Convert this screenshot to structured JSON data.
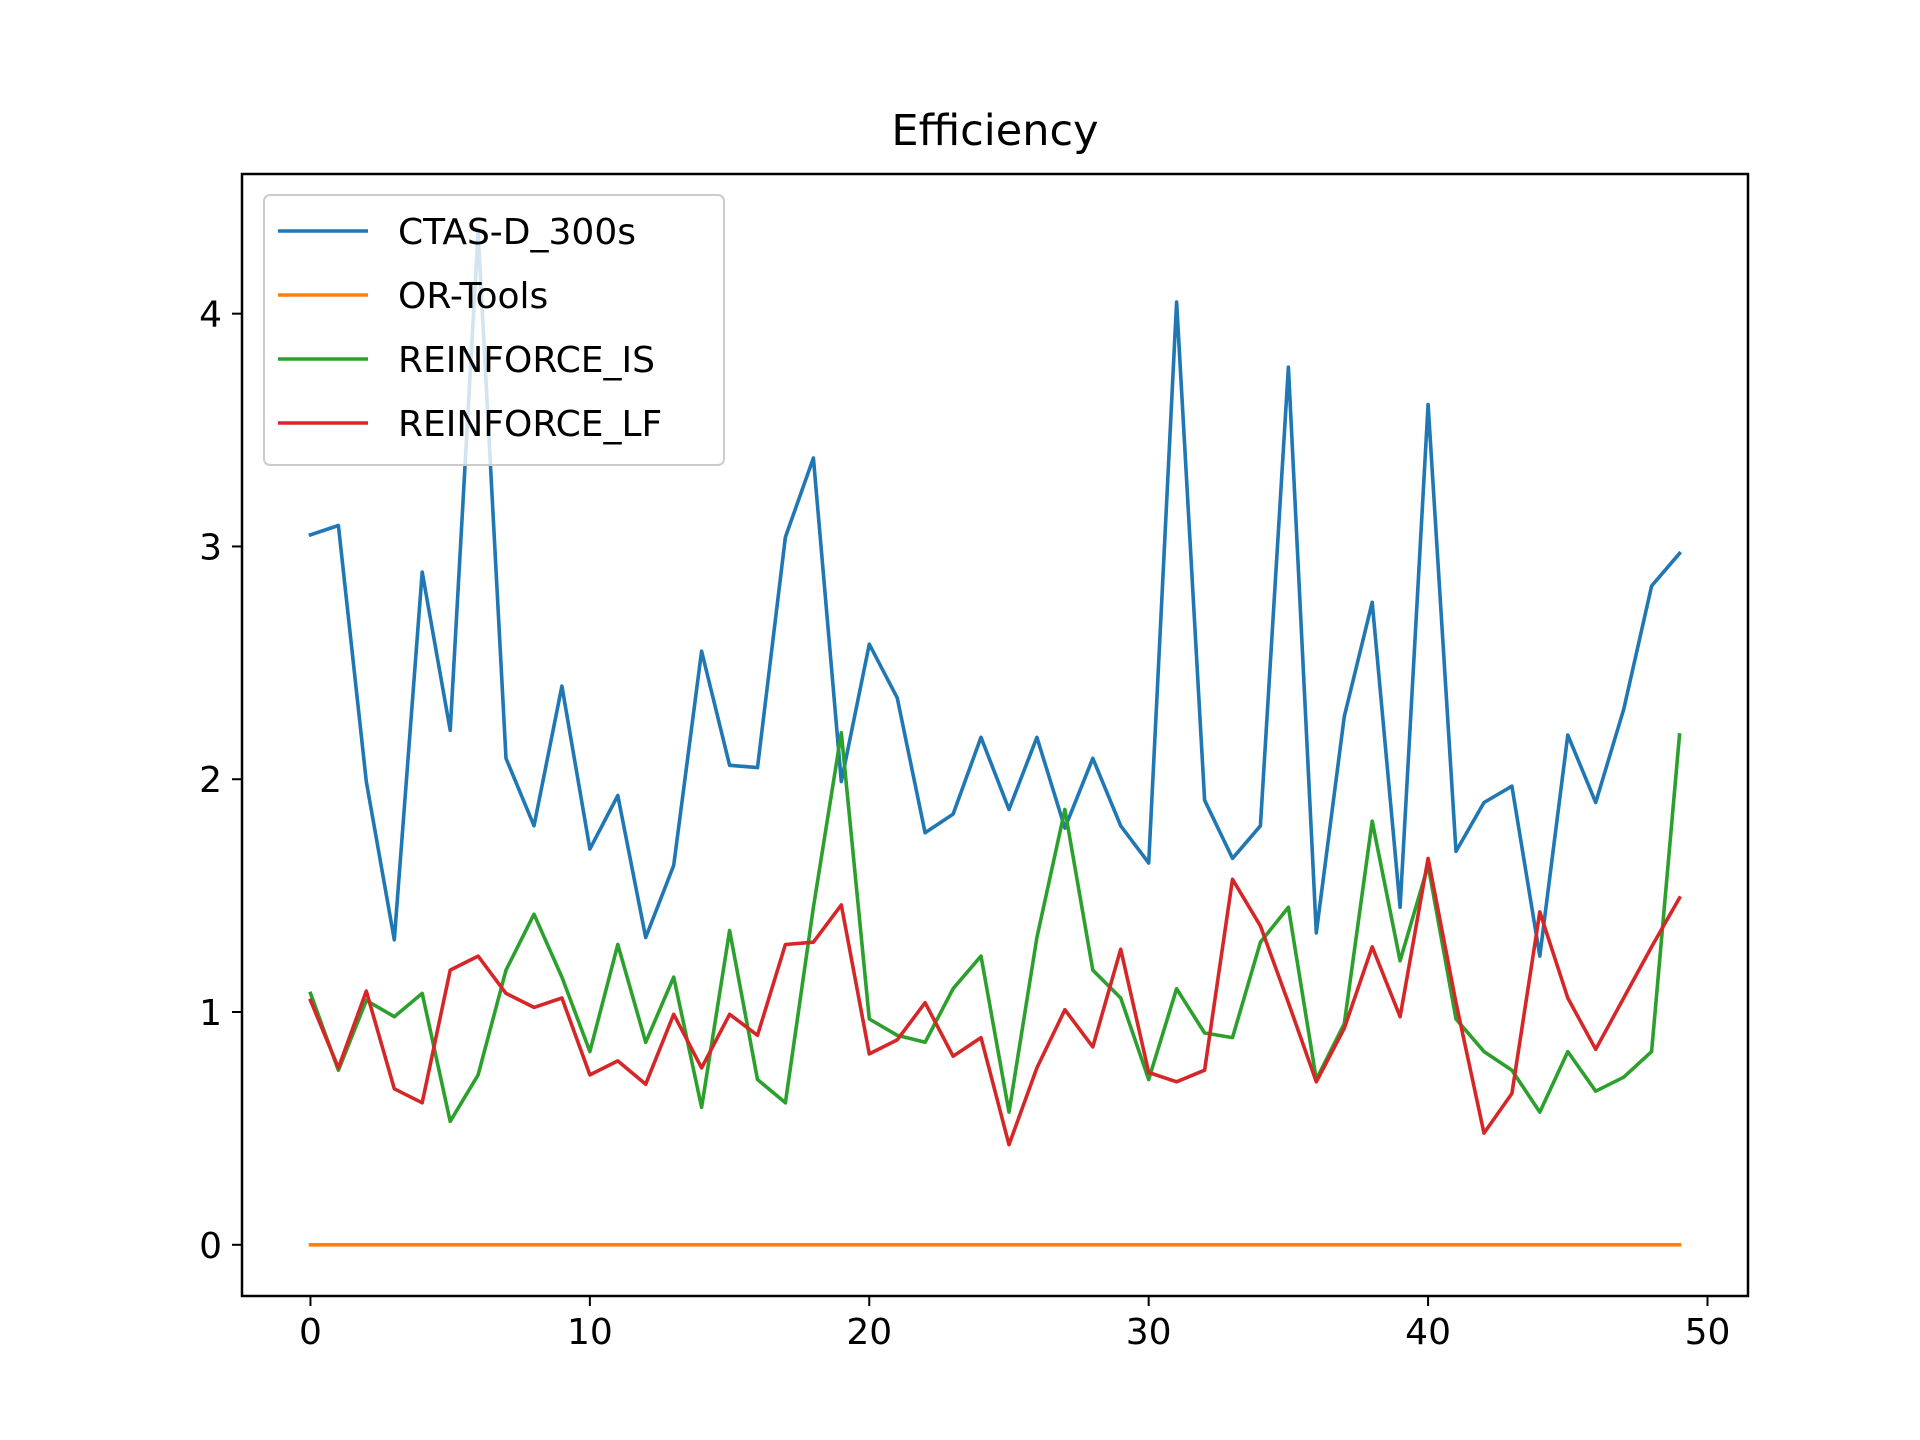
{
  "chart_data": {
    "type": "line",
    "title": "Efficiency",
    "xlabel": "",
    "ylabel": "",
    "xlim": [
      -2.45,
      51.45
    ],
    "ylim": [
      -0.22,
      4.6
    ],
    "xticks": [
      0,
      10,
      20,
      30,
      40,
      50
    ],
    "yticks": [
      0,
      1,
      2,
      3,
      4
    ],
    "grid": false,
    "legend_position": "upper-left",
    "x": [
      0,
      1,
      2,
      3,
      4,
      5,
      6,
      7,
      8,
      9,
      10,
      11,
      12,
      13,
      14,
      15,
      16,
      17,
      18,
      19,
      20,
      21,
      22,
      23,
      24,
      25,
      26,
      27,
      28,
      29,
      30,
      31,
      32,
      33,
      34,
      35,
      36,
      37,
      38,
      39,
      40,
      41,
      42,
      43,
      44,
      45,
      46,
      47,
      48,
      49
    ],
    "series": [
      {
        "name": "CTAS-D_300s",
        "color": "#1f77b4",
        "values": [
          3.05,
          3.09,
          1.99,
          1.31,
          2.89,
          2.21,
          4.35,
          2.09,
          1.8,
          2.4,
          1.7,
          1.93,
          1.32,
          1.63,
          2.55,
          2.06,
          2.05,
          3.04,
          3.38,
          1.99,
          2.58,
          2.35,
          1.77,
          1.85,
          2.18,
          1.87,
          2.18,
          1.79,
          2.09,
          1.8,
          1.64,
          4.05,
          1.91,
          1.66,
          1.8,
          3.77,
          1.34,
          2.27,
          2.76,
          1.45,
          3.61,
          1.69,
          1.9,
          1.97,
          1.24,
          2.19,
          1.9,
          2.3,
          2.83,
          2.97
        ]
      },
      {
        "name": "OR-Tools",
        "color": "#ff7f0e",
        "values": [
          0,
          0,
          0,
          0,
          0,
          0,
          0,
          0,
          0,
          0,
          0,
          0,
          0,
          0,
          0,
          0,
          0,
          0,
          0,
          0,
          0,
          0,
          0,
          0,
          0,
          0,
          0,
          0,
          0,
          0,
          0,
          0,
          0,
          0,
          0,
          0,
          0,
          0,
          0,
          0,
          0,
          0,
          0,
          0,
          0,
          0,
          0,
          0,
          0,
          0
        ]
      },
      {
        "name": "REINFORCE_IS",
        "color": "#2ca02c",
        "values": [
          1.08,
          0.75,
          1.05,
          0.98,
          1.08,
          0.53,
          0.73,
          1.18,
          1.42,
          1.15,
          0.83,
          1.29,
          0.87,
          1.15,
          0.59,
          1.35,
          0.71,
          0.61,
          1.45,
          2.2,
          0.97,
          0.9,
          0.87,
          1.1,
          1.24,
          0.57,
          1.32,
          1.87,
          1.18,
          1.06,
          0.71,
          1.1,
          0.91,
          0.89,
          1.3,
          1.45,
          0.71,
          0.95,
          1.82,
          1.22,
          1.63,
          0.97,
          0.83,
          0.75,
          0.57,
          0.83,
          0.66,
          0.72,
          0.83,
          2.19
        ]
      },
      {
        "name": "REINFORCE_LF",
        "color": "#d62728",
        "values": [
          1.05,
          0.76,
          1.09,
          0.67,
          0.61,
          1.18,
          1.24,
          1.08,
          1.02,
          1.06,
          0.73,
          0.79,
          0.69,
          0.99,
          0.76,
          0.99,
          0.9,
          1.29,
          1.3,
          1.46,
          0.82,
          0.88,
          1.04,
          0.81,
          0.89,
          0.43,
          0.76,
          1.01,
          0.85,
          1.27,
          0.74,
          0.7,
          0.75,
          1.57,
          1.37,
          1.04,
          0.7,
          0.93,
          1.28,
          0.98,
          1.66,
          1.04,
          0.48,
          0.65,
          1.43,
          1.06,
          0.84,
          1.06,
          1.28,
          1.49
        ]
      }
    ]
  }
}
